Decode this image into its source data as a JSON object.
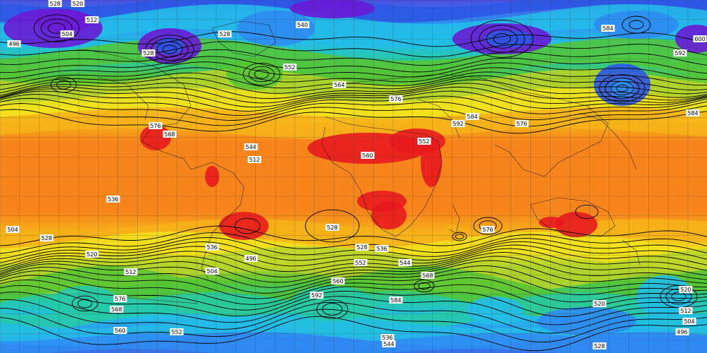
{
  "contour_labels": [
    "528",
    "520",
    "512",
    "504",
    "496",
    "528",
    "528",
    "540",
    "552",
    "564",
    "576",
    "584",
    "592",
    "576",
    "584",
    "592",
    "600",
    "584",
    "576",
    "568",
    "560",
    "552",
    "544",
    "536",
    "528",
    "520",
    "512",
    "504",
    "496",
    "528",
    "536",
    "544",
    "552",
    "560",
    "568",
    "576",
    "584",
    "592",
    "576",
    "568",
    "560",
    "552",
    "544",
    "536",
    "528",
    "520",
    "512",
    "504",
    "496",
    "520",
    "512",
    "504",
    "528",
    "536"
  ],
  "palette": {
    "violet": "#6a1bd6",
    "blue_dark": "#2c57e6",
    "blue": "#2f8cf2",
    "cyan": "#23bde7",
    "teal": "#27c9a7",
    "green": "#55c534",
    "yellow_green": "#b7d42a",
    "yellow": "#f2e21c",
    "orange_light": "#f6b119",
    "orange": "#f7851c",
    "orange_dark": "#f36a17",
    "red": "#e9191e"
  }
}
